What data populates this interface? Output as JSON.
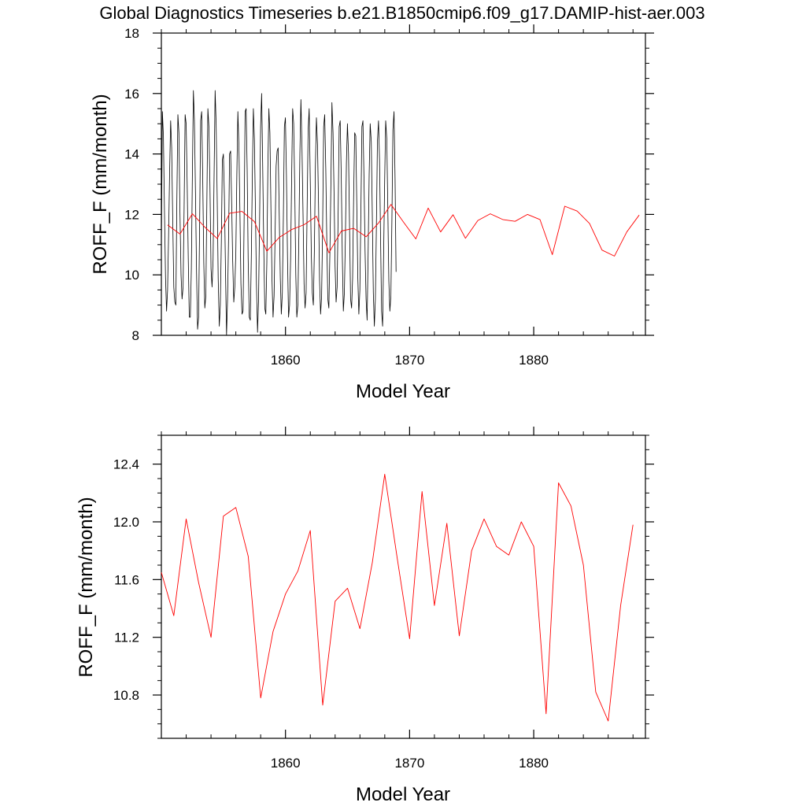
{
  "title": "Global Diagnostics Timeseries b.e21.B1850cmip6.f09_g17.DAMIP-hist-aer.003",
  "chart_data": [
    {
      "type": "line",
      "xlabel": "Model Year",
      "ylabel": "ROFF_F (mm/month)",
      "xlim": [
        1850,
        1889
      ],
      "ylim": [
        8,
        18
      ],
      "x_ticks": [
        1860,
        1870,
        1880
      ],
      "y_ticks": [
        8,
        10,
        12,
        14,
        16,
        18
      ],
      "y_tick_labels": [
        "8",
        "10",
        "12",
        "14",
        "16",
        "18"
      ],
      "grid": false,
      "series": [
        {
          "color": "#000000",
          "start_year": 1850,
          "step": 0.0833,
          "monthly_values": [
            10.8,
            15.4,
            14.6,
            12.2,
            9.9,
            8.8,
            9.5,
            11.3,
            13.4,
            15.1,
            14.2,
            11.9,
            9.6,
            9.1,
            9.0,
            12.5,
            15.3,
            14.7,
            12.1,
            10.0,
            9.2,
            9.6,
            12.2,
            15.3,
            15.0,
            13.0,
            10.5,
            8.6,
            8.6,
            10.2,
            13.3,
            16.1,
            15.1,
            12.8,
            10.1,
            8.2,
            8.6,
            11.6,
            15.1,
            15.4,
            13.3,
            10.4,
            8.9,
            9.3,
            12.4,
            15.5,
            14.9,
            13.0,
            10.2,
            9.6,
            10.5,
            13.3,
            16.1,
            15.0,
            12.6,
            9.9,
            8.3,
            9.0,
            11.1,
            13.8,
            14.0,
            12.6,
            10.3,
            8.0,
            9.2,
            11.2,
            14.0,
            14.1,
            12.4,
            10.5,
            9.1,
            9.6,
            10.7,
            13.3,
            15.4,
            14.3,
            12.1,
            9.7,
            8.7,
            8.8,
            11.7,
            15.4,
            15.5,
            13.5,
            10.5,
            8.6,
            8.5,
            10.6,
            13.3,
            15.5,
            14.5,
            12.2,
            9.7,
            8.1,
            9.2,
            11.8,
            14.9,
            16.0,
            13.7,
            11.1,
            8.9,
            8.7,
            10.4,
            13.5,
            15.5,
            14.7,
            12.2,
            9.8,
            8.6,
            9.3,
            11.3,
            13.6,
            14.1,
            14.2,
            12.1,
            9.9,
            8.7,
            9.4,
            11.9,
            14.9,
            15.2,
            13.3,
            10.5,
            8.6,
            9.0,
            10.5,
            13.2,
            15.5,
            15.0,
            12.8,
            10.0,
            8.6,
            9.0,
            11.3,
            14.0,
            15.8,
            14.3,
            12.0,
            9.7,
            8.9,
            9.4,
            12.2,
            14.8,
            15.5,
            13.1,
            10.7,
            9.4,
            9.0,
            10.8,
            13.6,
            15.2,
            14.3,
            12.3,
            9.8,
            8.7,
            9.3,
            11.6,
            14.9,
            15.3,
            13.5,
            11.1,
            9.2,
            8.9,
            10.7,
            13.0,
            15.7,
            14.7,
            12.7,
            10.3,
            9.1,
            9.6,
            12.0,
            14.9,
            15.1,
            13.2,
            10.6,
            8.8,
            9.4,
            11.2,
            13.7,
            15.0,
            14.0,
            11.6,
            9.2,
            8.9,
            9.9,
            12.6,
            14.7,
            14.6,
            12.3,
            9.9,
            8.7,
            9.5,
            12.1,
            14.9,
            15.1,
            13.1,
            10.8,
            9.2,
            8.5,
            10.7,
            13.3,
            15.0,
            14.4,
            12.0,
            9.4,
            8.3,
            9.2,
            11.6,
            14.4,
            15.1,
            13.8,
            11.2,
            8.8,
            8.3,
            10.7,
            13.1,
            15.1,
            14.5,
            12.2,
            9.8,
            8.8,
            9.3,
            11.8,
            14.8,
            15.4,
            13.2,
            10.1
          ]
        },
        {
          "color": "#ff0000",
          "x": [
            1850.5,
            1851.5,
            1852.5,
            1853.5,
            1854.5,
            1855.5,
            1856.5,
            1857.5,
            1858.5,
            1859.5,
            1860.5,
            1861.5,
            1862.5,
            1863.5,
            1864.5,
            1865.5,
            1866.5,
            1867.5,
            1868.5,
            1869.5,
            1870.5,
            1871.5,
            1872.5,
            1873.5,
            1874.5,
            1875.5,
            1876.5,
            1877.5,
            1878.5,
            1879.5,
            1880.5,
            1881.5,
            1882.5,
            1883.5,
            1884.5,
            1885.5,
            1886.5,
            1887.5,
            1888.5
          ],
          "values": [
            11.65,
            11.35,
            12.02,
            11.58,
            11.2,
            12.04,
            12.1,
            11.76,
            10.78,
            11.24,
            11.5,
            11.66,
            11.94,
            10.73,
            11.45,
            11.54,
            11.26,
            11.72,
            12.33,
            11.75,
            11.19,
            12.21,
            11.42,
            11.99,
            11.21,
            11.8,
            12.02,
            11.83,
            11.77,
            12.0,
            11.83,
            10.67,
            12.27,
            12.11,
            11.7,
            10.82,
            10.62,
            11.42,
            11.98
          ]
        }
      ]
    },
    {
      "type": "line",
      "xlabel": "Model Year",
      "ylabel": "ROFF_F (mm/month)",
      "xlim": [
        1850,
        1889
      ],
      "ylim": [
        10.5,
        12.6
      ],
      "x_ticks": [
        1860,
        1870,
        1880
      ],
      "y_ticks": [
        10.8,
        11.2,
        11.6,
        12.0,
        12.4
      ],
      "y_tick_labels": [
        "10.8",
        "11.2",
        "11.6",
        "12.0",
        "12.4"
      ],
      "grid": false,
      "series": [
        {
          "color": "#ff0000",
          "x": [
            1850,
            1851,
            1852,
            1853,
            1854,
            1855,
            1856,
            1857,
            1858,
            1859,
            1860,
            1861,
            1862,
            1863,
            1864,
            1865,
            1866,
            1867,
            1868,
            1869,
            1870,
            1871,
            1872,
            1873,
            1874,
            1875,
            1876,
            1877,
            1878,
            1879,
            1880,
            1881,
            1882,
            1883,
            1884,
            1885,
            1886,
            1887,
            1888
          ],
          "values": [
            11.65,
            11.35,
            12.02,
            11.58,
            11.2,
            12.04,
            12.1,
            11.76,
            10.78,
            11.24,
            11.5,
            11.66,
            11.94,
            10.73,
            11.45,
            11.54,
            11.26,
            11.72,
            12.33,
            11.75,
            11.19,
            12.21,
            11.42,
            11.99,
            11.21,
            11.8,
            12.02,
            11.83,
            11.77,
            12.0,
            11.83,
            10.67,
            12.27,
            12.11,
            11.7,
            10.82,
            10.62,
            11.42,
            11.98
          ]
        }
      ]
    }
  ]
}
